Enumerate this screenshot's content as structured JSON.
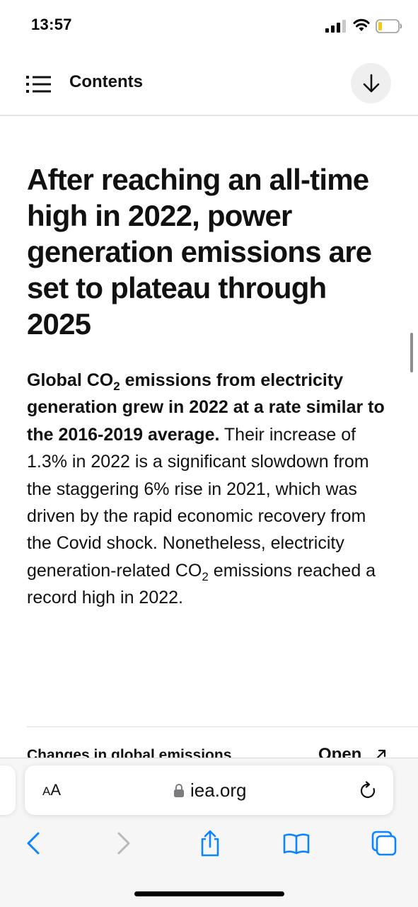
{
  "status_bar": {
    "time": "13:57"
  },
  "header": {
    "contents_label": "Contents"
  },
  "article": {
    "headline": "After reaching an all-time high in 2022, power generation emissions are set to plateau through 2025",
    "body": {
      "bold_1": "Global CO",
      "bold_sub": "2",
      "bold_2": " emissions from electricity generation grew in 2022 at a rate similar to the 2016-2019 average.",
      "text_1": " Their increase of 1.3% in 2022 is a significant slowdown from the staggering 6% rise in 2021, which was driven by the rapid economic recovery from the Covid shock. Nonetheless, electricity generation-related CO",
      "text_sub": "2",
      "text_2": " emissions reached a record high in 2022."
    }
  },
  "chart_panel": {
    "title": "Changes in global emissions",
    "open_label": "Open"
  },
  "safari": {
    "aa_big": "A",
    "aa_small": "A",
    "url": "iea.org"
  },
  "icons": {
    "menu": "list-icon",
    "download": "arrow-down-icon",
    "open": "external-link-icon",
    "lock": "lock-icon",
    "reload": "reload-icon",
    "back": "chevron-left-icon",
    "forward": "chevron-right-icon",
    "share": "share-icon",
    "bookmarks": "book-icon",
    "tabs": "tabs-icon"
  },
  "colors": {
    "accent": "#0a84ff",
    "disabled": "#b7b7bc"
  }
}
